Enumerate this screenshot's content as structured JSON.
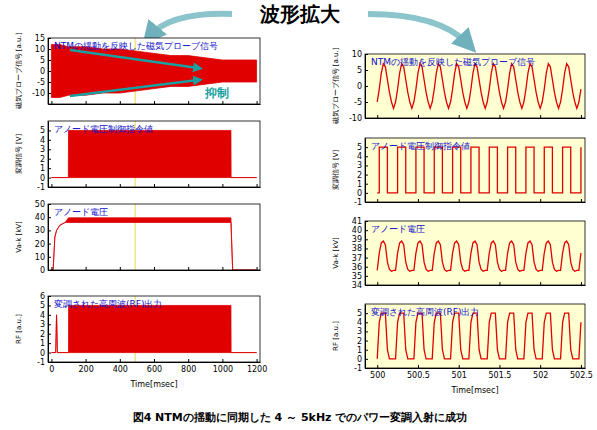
{
  "header": "波形拡大",
  "caption": "図4 NTMの揺動に同期した 4 ～ 5kHz でのパワー変調入射に成功",
  "chart_data": [
    {
      "type": "band",
      "title": "NTMの揺動を反映した磁気プローブ信号",
      "ylabel": "磁気プローブ信号 [a.u.]",
      "color": "#e00000",
      "xlim": [
        -20,
        1220
      ],
      "xticks": [
        0,
        200,
        400,
        600,
        800,
        1000,
        1200
      ],
      "ylim": [
        -15,
        15
      ],
      "yticks": [
        -10,
        -5,
        0,
        5,
        10,
        15
      ],
      "tick_labels": "y",
      "highlight_x": 490,
      "x": [
        0,
        50,
        100,
        200,
        300,
        400,
        500,
        600,
        700,
        800,
        900,
        1000,
        1100,
        1200
      ],
      "lower": [
        -12,
        -12,
        -11,
        -11,
        -10,
        -10,
        -9,
        -8,
        -7,
        -7,
        -6,
        -5,
        -5,
        -5
      ],
      "upper": [
        12,
        12,
        11,
        11,
        10,
        10,
        9,
        8,
        7,
        7,
        6,
        5,
        5,
        5
      ],
      "annotations": [
        {
          "text": "抑制",
          "x": 900,
          "y": -12
        }
      ]
    },
    {
      "type": "band",
      "title": "アノード電圧制御指令値",
      "ylabel": "変調信号 [V]",
      "color": "#e00000",
      "xlim": [
        -20,
        1220
      ],
      "xticks": [
        0,
        200,
        400,
        600,
        800,
        1000,
        1200
      ],
      "ylim": [
        -1,
        6
      ],
      "yticks": [
        -1,
        0,
        1,
        2,
        3,
        4,
        5
      ],
      "tick_labels": "y",
      "highlight_x": 490,
      "x": [
        0,
        99,
        100,
        1050,
        1051,
        1200
      ],
      "lower": [
        0,
        0,
        0,
        0,
        0,
        0
      ],
      "upper": [
        0,
        0,
        5,
        5,
        0,
        0
      ]
    },
    {
      "type": "band",
      "title": "アノード電圧",
      "ylabel": "Va-k [kV]",
      "color": "#e00000",
      "xlim": [
        -20,
        1220
      ],
      "xticks": [
        0,
        200,
        400,
        600,
        800,
        1000,
        1200
      ],
      "ylim": [
        0,
        50
      ],
      "yticks": [
        0,
        10,
        20,
        30,
        40,
        50
      ],
      "tick_labels": "y",
      "highlight_x": 490,
      "x": [
        0,
        10,
        20,
        30,
        50,
        80,
        100,
        1050,
        1060,
        1200
      ],
      "lower": [
        0,
        0,
        25,
        30,
        34,
        36,
        36,
        36,
        0,
        0
      ],
      "upper": [
        0,
        0,
        25,
        30,
        34,
        36,
        39.5,
        39.5,
        0,
        0
      ]
    },
    {
      "type": "band",
      "title": "変調された高周波(RF)出力",
      "ylabel": "RF [a.u.]",
      "xlabel": "Time[msec]",
      "color": "#e00000",
      "xlim": [
        -20,
        1220
      ],
      "xticks": [
        0,
        200,
        400,
        600,
        800,
        1000,
        1200
      ],
      "ylim": [
        -1,
        6
      ],
      "yticks": [
        -1,
        0,
        1,
        2,
        3,
        4,
        5,
        6
      ],
      "highlight_x": 490,
      "x": [
        0,
        25,
        30,
        35,
        100,
        100.5,
        1050,
        1051,
        1200
      ],
      "lower": [
        0,
        0,
        4,
        0,
        0,
        0,
        0,
        0,
        0
      ],
      "upper": [
        0,
        0,
        4,
        0,
        0,
        5,
        5,
        0,
        0
      ]
    },
    {
      "type": "line",
      "title": "NTMの揺動を反映した磁気プローブ信号",
      "ylabel": "磁気プローブ信号 [a.u.]",
      "color": "#e00000",
      "xlim": [
        499.85,
        502.55
      ],
      "xticks": [
        500,
        500.5,
        501,
        501.5,
        502,
        502.5
      ],
      "ylim": [
        -10,
        10
      ],
      "yticks": [
        -10,
        -5,
        0,
        5,
        10
      ],
      "tick_labels": "y",
      "x": [
        500,
        500.025,
        500.05,
        500.075,
        500.1,
        500.125,
        500.15,
        500.175,
        500.2,
        500.225,
        500.25,
        500.275,
        500.3,
        500.325,
        500.35,
        500.375,
        500.4,
        500.425,
        500.45,
        500.475,
        500.5,
        500.525,
        500.55,
        500.575,
        500.6,
        500.625,
        500.65,
        500.675,
        500.7,
        500.725,
        500.75,
        500.775,
        500.8,
        500.825,
        500.85,
        500.875,
        500.9,
        500.925,
        500.95,
        500.975,
        501,
        501.025,
        501.05,
        501.075,
        501.1,
        501.125,
        501.15,
        501.175,
        501.2,
        501.225,
        501.25,
        501.275,
        501.3,
        501.325,
        501.35,
        501.375,
        501.4,
        501.425,
        501.45,
        501.475,
        501.5,
        501.525,
        501.55,
        501.575,
        501.6,
        501.625,
        501.65,
        501.675,
        501.7,
        501.725,
        501.75,
        501.775,
        501.8,
        501.825,
        501.85,
        501.875,
        501.9,
        501.925,
        501.95,
        501.975,
        502,
        502.025,
        502.05,
        502.075,
        502.1,
        502.125,
        502.15,
        502.175,
        502.2,
        502.225,
        502.25,
        502.275,
        502.3,
        502.325,
        502.35,
        502.375,
        502.4,
        502.425,
        502.45,
        502.475,
        502.5
      ],
      "values": [
        -5,
        -1,
        4,
        7,
        6,
        2,
        -2,
        -5,
        -7,
        -5,
        -1,
        4,
        7,
        6,
        2,
        -2,
        -5,
        -7,
        -5,
        -1,
        4,
        7,
        6,
        2,
        -2,
        -5,
        -7,
        -5,
        -1,
        4,
        7,
        6,
        2,
        -2,
        -5,
        -7,
        -5,
        -1,
        4,
        7,
        6,
        2,
        -2,
        -5,
        -7,
        -5,
        -1,
        4,
        7,
        6,
        2,
        -2,
        -5,
        -7,
        -5,
        -1,
        4,
        7,
        6,
        2,
        -2,
        -5,
        -7,
        -5,
        -1,
        4,
        7,
        6,
        2,
        -2,
        -5,
        -7,
        -5,
        -1,
        4,
        7,
        6,
        2,
        -2,
        -5,
        -7,
        -5,
        -1,
        4,
        7,
        6,
        2,
        -2,
        -5,
        -7,
        -5,
        -1,
        4,
        7,
        6,
        2,
        -2,
        -5,
        -7,
        -5,
        -1
      ]
    },
    {
      "type": "line",
      "title": "アノード電圧制御指令値",
      "ylabel": "変調信号 [V]",
      "line_style": "step",
      "color": "#e00000",
      "xlim": [
        499.85,
        502.55
      ],
      "xticks": [
        500,
        500.5,
        501,
        501.5,
        502,
        502.5
      ],
      "ylim": [
        -1,
        6
      ],
      "yticks": [
        -1,
        0,
        1,
        2,
        3,
        4,
        5
      ],
      "tick_labels": "y",
      "x": [
        500,
        500.025,
        500.05,
        500.075,
        500.1,
        500.125,
        500.15,
        500.175,
        500.2,
        500.225,
        500.25,
        500.275,
        500.3,
        500.325,
        500.35,
        500.375,
        500.4,
        500.425,
        500.45,
        500.475,
        500.5,
        500.525,
        500.55,
        500.575,
        500.6,
        500.625,
        500.65,
        500.675,
        500.7,
        500.725,
        500.75,
        500.775,
        500.8,
        500.825,
        500.85,
        500.875,
        500.9,
        500.925,
        500.95,
        500.975,
        501,
        501.025,
        501.05,
        501.075,
        501.1,
        501.125,
        501.15,
        501.175,
        501.2,
        501.225,
        501.25,
        501.275,
        501.3,
        501.325,
        501.35,
        501.375,
        501.4,
        501.425,
        501.45,
        501.475,
        501.5,
        501.525,
        501.55,
        501.575,
        501.6,
        501.625,
        501.65,
        501.675,
        501.7,
        501.725,
        501.75,
        501.775,
        501.8,
        501.825,
        501.85,
        501.875,
        501.9,
        501.925,
        501.95,
        501.975,
        502,
        502.025,
        502.05,
        502.075,
        502.1,
        502.125,
        502.15,
        502.175,
        502.2,
        502.225,
        502.25,
        502.275,
        502.3,
        502.325,
        502.35,
        502.375,
        502.4,
        502.425,
        502.45,
        502.475,
        502.5
      ],
      "values": [
        0,
        5,
        5,
        5,
        5,
        0,
        0,
        0,
        0,
        0,
        5,
        5,
        5,
        5,
        0,
        0,
        0,
        0,
        0,
        5,
        5,
        5,
        5,
        0,
        0,
        0,
        0,
        0,
        5,
        5,
        5,
        5,
        0,
        0,
        0,
        0,
        0,
        5,
        5,
        5,
        5,
        0,
        0,
        0,
        0,
        0,
        5,
        5,
        5,
        5,
        0,
        0,
        0,
        0,
        0,
        5,
        5,
        5,
        5,
        0,
        0,
        0,
        0,
        0,
        5,
        5,
        5,
        5,
        0,
        0,
        0,
        0,
        0,
        5,
        5,
        5,
        5,
        0,
        0,
        0,
        0,
        0,
        5,
        5,
        5,
        5,
        0,
        0,
        0,
        0,
        0,
        5,
        5,
        5,
        5,
        0,
        0,
        0,
        0,
        0,
        5
      ]
    },
    {
      "type": "line",
      "title": "アノード電圧",
      "ylabel": "Va-k [kV]",
      "color": "#e00000",
      "xlim": [
        499.85,
        502.55
      ],
      "xticks": [
        500,
        500.5,
        501,
        501.5,
        502,
        502.5
      ],
      "ylim": [
        34,
        41
      ],
      "yticks": [
        34,
        35,
        36,
        37,
        38,
        39,
        40,
        41
      ],
      "tick_labels": "y",
      "x": [
        500,
        500.025,
        500.05,
        500.075,
        500.1,
        500.125,
        500.15,
        500.175,
        500.2,
        500.225,
        500.25,
        500.275,
        500.3,
        500.325,
        500.35,
        500.375,
        500.4,
        500.425,
        500.45,
        500.475,
        500.5,
        500.525,
        500.55,
        500.575,
        500.6,
        500.625,
        500.65,
        500.675,
        500.7,
        500.725,
        500.75,
        500.775,
        500.8,
        500.825,
        500.85,
        500.875,
        500.9,
        500.925,
        500.95,
        500.975,
        501,
        501.025,
        501.05,
        501.075,
        501.1,
        501.125,
        501.15,
        501.175,
        501.2,
        501.225,
        501.25,
        501.275,
        501.3,
        501.325,
        501.35,
        501.375,
        501.4,
        501.425,
        501.45,
        501.475,
        501.5,
        501.525,
        501.55,
        501.575,
        501.6,
        501.625,
        501.65,
        501.675,
        501.7,
        501.725,
        501.75,
        501.775,
        501.8,
        501.825,
        501.85,
        501.875,
        501.9,
        501.925,
        501.95,
        501.975,
        502,
        502.025,
        502.05,
        502.075,
        502.1,
        502.125,
        502.15,
        502.175,
        502.2,
        502.225,
        502.25,
        502.275,
        502.3,
        502.325,
        502.35,
        502.375,
        502.4,
        502.425,
        502.45,
        502.475,
        502.5
      ],
      "values": [
        35.6,
        37.5,
        38.6,
        38.8,
        38.4,
        36.5,
        35.7,
        35.5,
        35.6,
        35.6,
        37.5,
        38.6,
        38.8,
        38.4,
        36.5,
        35.7,
        35.5,
        35.6,
        35.6,
        37.5,
        38.6,
        38.8,
        38.4,
        36.5,
        35.7,
        35.5,
        35.6,
        35.6,
        37.5,
        38.6,
        38.8,
        38.4,
        36.5,
        35.7,
        35.5,
        35.6,
        35.6,
        37.5,
        38.6,
        38.8,
        38.4,
        36.5,
        35.7,
        35.5,
        35.6,
        35.6,
        37.5,
        38.6,
        38.8,
        38.4,
        36.5,
        35.7,
        35.5,
        35.6,
        35.6,
        37.5,
        38.6,
        38.8,
        38.4,
        36.5,
        35.7,
        35.5,
        35.6,
        35.6,
        37.5,
        38.6,
        38.8,
        38.4,
        36.5,
        35.7,
        35.5,
        35.6,
        35.6,
        37.5,
        38.6,
        38.8,
        38.4,
        36.5,
        35.7,
        35.5,
        35.6,
        35.6,
        37.5,
        38.6,
        38.8,
        38.4,
        36.5,
        35.7,
        35.5,
        35.6,
        35.6,
        37.5,
        38.6,
        38.8,
        38.4,
        36.5,
        35.7,
        35.5,
        35.6,
        35.6,
        37.5
      ]
    },
    {
      "type": "line",
      "title": "変調された高周波(RF)出力",
      "ylabel": "RF [a.u.]",
      "xlabel": "Time[msec]",
      "color": "#e00000",
      "xlim": [
        499.85,
        502.55
      ],
      "xticks": [
        500,
        500.5,
        501,
        501.5,
        502,
        502.5
      ],
      "ylim": [
        -1,
        6
      ],
      "yticks": [
        -1,
        0,
        1,
        2,
        3,
        4,
        5
      ],
      "x": [
        500,
        500.025,
        500.05,
        500.075,
        500.1,
        500.125,
        500.15,
        500.175,
        500.2,
        500.225,
        500.25,
        500.275,
        500.3,
        500.325,
        500.35,
        500.375,
        500.4,
        500.425,
        500.45,
        500.475,
        500.5,
        500.525,
        500.55,
        500.575,
        500.6,
        500.625,
        500.65,
        500.675,
        500.7,
        500.725,
        500.75,
        500.775,
        500.8,
        500.825,
        500.85,
        500.875,
        500.9,
        500.925,
        500.95,
        500.975,
        501,
        501.025,
        501.05,
        501.075,
        501.1,
        501.125,
        501.15,
        501.175,
        501.2,
        501.225,
        501.25,
        501.275,
        501.3,
        501.325,
        501.35,
        501.375,
        501.4,
        501.425,
        501.45,
        501.475,
        501.5,
        501.525,
        501.55,
        501.575,
        501.6,
        501.625,
        501.65,
        501.675,
        501.7,
        501.725,
        501.75,
        501.775,
        501.8,
        501.825,
        501.85,
        501.875,
        501.9,
        501.925,
        501.95,
        501.975,
        502,
        502.025,
        502.05,
        502.075,
        502.1,
        502.125,
        502.15,
        502.175,
        502.2,
        502.225,
        502.25,
        502.275,
        502.3,
        502.325,
        502.35,
        502.375,
        502.4,
        502.425,
        502.45,
        502.475,
        502.5
      ],
      "values": [
        0,
        4,
        5,
        5,
        5,
        1,
        0,
        0,
        0,
        0,
        4,
        5,
        5,
        5,
        1,
        0,
        0,
        0,
        0,
        4,
        5,
        5,
        5,
        1,
        0,
        0,
        0,
        0,
        4,
        5,
        5,
        5,
        1,
        0,
        0,
        0,
        0,
        4,
        5,
        5,
        5,
        1,
        0,
        0,
        0,
        0,
        4,
        5,
        5,
        5,
        1,
        0,
        0,
        0,
        0,
        4,
        5,
        5,
        5,
        1,
        0,
        0,
        0,
        0,
        4,
        5,
        5,
        5,
        1,
        0,
        0,
        0,
        0,
        4,
        5,
        5,
        5,
        1,
        0,
        0,
        0,
        0,
        4,
        5,
        5,
        5,
        1,
        0,
        0,
        0,
        0,
        4,
        5,
        5,
        5,
        1,
        0,
        0,
        0,
        0,
        4
      ]
    }
  ]
}
